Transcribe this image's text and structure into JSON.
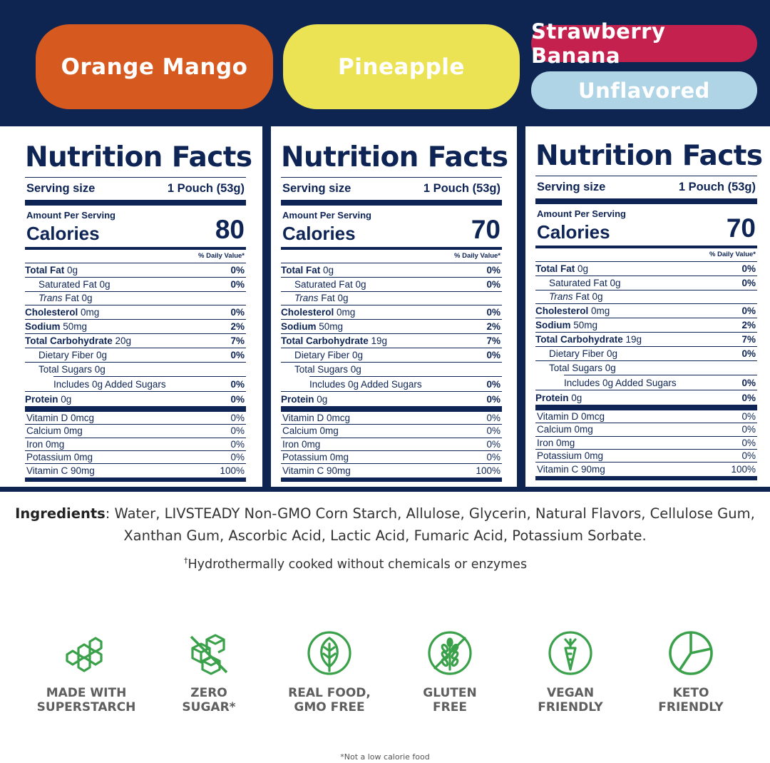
{
  "flavors": [
    "Orange Mango",
    "Pineapple",
    "Strawberry Banana",
    "Unflavored"
  ],
  "colors": {
    "navy": "#0e2552",
    "orange_mango": "#d65a20",
    "pineapple": "#ece354",
    "strawberry_banana": "#c4214f",
    "unflavored": "#aed4e6",
    "icon_green": "#3aa14a"
  },
  "labels": [
    {
      "title": "Nutrition Facts",
      "serving_label": "Serving size",
      "serving_value": "1 Pouch (53g)",
      "amount_per_serving": "Amount Per Serving",
      "calories_label": "Calories",
      "calories_value": "80",
      "dv_header": "% Daily Value*",
      "total_fat": {
        "label": "Total Fat",
        "amount": "0g",
        "pct": "0%"
      },
      "saturated_fat": {
        "label": "Saturated Fat 0g",
        "pct": "0%"
      },
      "trans_fat": {
        "label": "Trans",
        "amount": "Fat 0g"
      },
      "cholesterol": {
        "label": "Cholesterol",
        "amount": "0mg",
        "pct": "0%"
      },
      "sodium": {
        "label": "Sodium",
        "amount": "50mg",
        "pct": "2%"
      },
      "total_carb": {
        "label": "Total Carbohydrate",
        "amount": "20g",
        "pct": "7%"
      },
      "dietary_fiber": {
        "label": "Dietary Fiber 0g",
        "pct": "0%"
      },
      "total_sugars": {
        "label": "Total Sugars 0g"
      },
      "added_sugars": {
        "label": "Includes 0g Added Sugars",
        "pct": "0%"
      },
      "protein": {
        "label": "Protein",
        "amount": "0g",
        "pct": "0%"
      },
      "vitamins": [
        {
          "name": "Vitamin D 0mcg",
          "pct": "0%"
        },
        {
          "name": "Calcium 0mg",
          "pct": "0%"
        },
        {
          "name": "Iron 0mg",
          "pct": "0%"
        },
        {
          "name": "Potassium 0mg",
          "pct": "0%"
        },
        {
          "name": "Vitamin C 90mg",
          "pct": "100%"
        }
      ]
    },
    {
      "title": "Nutrition Facts",
      "serving_label": "Serving size",
      "serving_value": "1 Pouch (53g)",
      "amount_per_serving": "Amount Per Serving",
      "calories_label": "Calories",
      "calories_value": "70",
      "dv_header": "% Daily Value*",
      "total_fat": {
        "label": "Total Fat",
        "amount": "0g",
        "pct": "0%"
      },
      "saturated_fat": {
        "label": "Saturated Fat 0g",
        "pct": "0%"
      },
      "trans_fat": {
        "label": "Trans",
        "amount": "Fat 0g"
      },
      "cholesterol": {
        "label": "Cholesterol",
        "amount": "0mg",
        "pct": "0%"
      },
      "sodium": {
        "label": "Sodium",
        "amount": "50mg",
        "pct": "2%"
      },
      "total_carb": {
        "label": "Total Carbohydrate",
        "amount": "19g",
        "pct": "7%"
      },
      "dietary_fiber": {
        "label": "Dietary Fiber 0g",
        "pct": "0%"
      },
      "total_sugars": {
        "label": "Total Sugars 0g"
      },
      "added_sugars": {
        "label": "Includes 0g Added Sugars",
        "pct": "0%"
      },
      "protein": {
        "label": "Protein",
        "amount": "0g",
        "pct": "0%"
      },
      "vitamins": [
        {
          "name": "Vitamin D 0mcg",
          "pct": "0%"
        },
        {
          "name": "Calcium 0mg",
          "pct": "0%"
        },
        {
          "name": "Iron 0mg",
          "pct": "0%"
        },
        {
          "name": "Potassium 0mg",
          "pct": "0%"
        },
        {
          "name": "Vitamin C 90mg",
          "pct": "100%"
        }
      ]
    },
    {
      "title": "Nutrition Facts",
      "serving_label": "Serving size",
      "serving_value": "1 Pouch (53g)",
      "amount_per_serving": "Amount Per Serving",
      "calories_label": "Calories",
      "calories_value": "70",
      "dv_header": "% Daily Value*",
      "total_fat": {
        "label": "Total Fat",
        "amount": "0g",
        "pct": "0%"
      },
      "saturated_fat": {
        "label": "Saturated Fat 0g",
        "pct": "0%"
      },
      "trans_fat": {
        "label": "Trans",
        "amount": "Fat 0g"
      },
      "cholesterol": {
        "label": "Cholesterol",
        "amount": "0mg",
        "pct": "0%"
      },
      "sodium": {
        "label": "Sodium",
        "amount": "50mg",
        "pct": "2%"
      },
      "total_carb": {
        "label": "Total Carbohydrate",
        "amount": "19g",
        "pct": "7%"
      },
      "dietary_fiber": {
        "label": "Dietary Fiber 0g",
        "pct": "0%"
      },
      "total_sugars": {
        "label": "Total Sugars 0g"
      },
      "added_sugars": {
        "label": "Includes 0g Added Sugars",
        "pct": "0%"
      },
      "protein": {
        "label": "Protein",
        "amount": "0g",
        "pct": "0%"
      },
      "vitamins": [
        {
          "name": "Vitamin D 0mcg",
          "pct": "0%"
        },
        {
          "name": "Calcium 0mg",
          "pct": "0%"
        },
        {
          "name": "Iron 0mg",
          "pct": "0%"
        },
        {
          "name": "Potassium 0mg",
          "pct": "0%"
        },
        {
          "name": "Vitamin C 90mg",
          "pct": "100%"
        }
      ]
    }
  ],
  "ingredients": {
    "heading": "Ingredients",
    "text": ": Water, LIVSTEADY Non-GMO Corn Starch, Allulose, Glycerin, Natural Flavors, Cellulose Gum, Xanthan Gum, Ascorbic Acid, Lactic Acid, Fumaric Acid, Potassium Sorbate."
  },
  "footnote": {
    "mark": "†",
    "text": "Hydrothermally cooked without chemicals or enzymes"
  },
  "badges": [
    {
      "icon": "hexagon-molecule-icon",
      "label": "MADE WITH\nSUPERSTARCH"
    },
    {
      "icon": "no-sugar-cube-icon",
      "label": "ZERO\nSUGAR*"
    },
    {
      "icon": "leaf-icon",
      "label": "REAL FOOD,\nGMO FREE"
    },
    {
      "icon": "no-wheat-icon",
      "label": "GLUTEN\nFREE"
    },
    {
      "icon": "carrot-icon",
      "label": "VEGAN\nFRIENDLY"
    },
    {
      "icon": "pie-chart-icon",
      "label": "KETO\nFRIENDLY"
    }
  ],
  "disclaimer": "*Not a low calorie food"
}
